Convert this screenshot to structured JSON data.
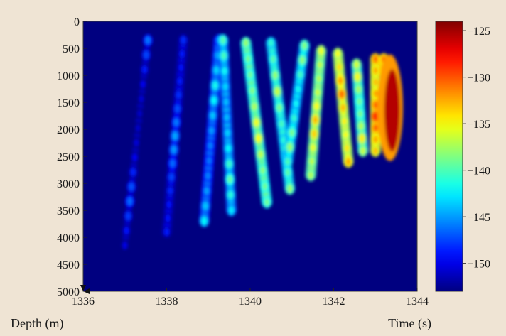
{
  "chart_data": {
    "type": "heatmap",
    "title": "",
    "xlabel": "Time (s)",
    "ylabel": "Depth (m)",
    "xlim": [
      1336,
      1344
    ],
    "ylim": [
      0,
      5000
    ],
    "y_inverted": true,
    "x_ticks": [
      1336,
      1338,
      1340,
      1342,
      1344
    ],
    "y_ticks": [
      0,
      500,
      1000,
      1500,
      2000,
      2500,
      3000,
      3500,
      4000,
      4500,
      5000
    ],
    "colorbar": {
      "range": [
        -153,
        -124
      ],
      "ticks": [
        -125,
        -130,
        -135,
        -140,
        -145,
        -150
      ],
      "tick_labels": [
        "−125",
        "−130",
        "−135",
        "−140",
        "−145",
        "−150"
      ],
      "colormap": "jet"
    },
    "background_value": -153,
    "arrivals": [
      {
        "t_top": 1337.55,
        "t_bottom": 1337.0,
        "z_top": 350,
        "z_bottom": 4150,
        "peak": -146,
        "rows": 14
      },
      {
        "t_top": 1338.4,
        "t_bottom": 1338.0,
        "z_top": 350,
        "z_bottom": 3900,
        "peak": -144,
        "rows": 14
      },
      {
        "t_top": 1339.25,
        "t_bottom": 1338.9,
        "z_top": 350,
        "z_bottom": 3700,
        "peak": -141,
        "rows": 12
      },
      {
        "t_top": 1339.35,
        "t_bottom": 1339.55,
        "z_top": 350,
        "z_bottom": 3500,
        "peak": -139,
        "rows": 11
      },
      {
        "t_top": 1339.9,
        "t_bottom": 1340.4,
        "z_top": 400,
        "z_bottom": 3350,
        "peak": -134,
        "rows": 10
      },
      {
        "t_top": 1340.5,
        "t_bottom": 1340.95,
        "z_top": 400,
        "z_bottom": 3100,
        "peak": -136,
        "rows": 9
      },
      {
        "t_top": 1341.3,
        "t_bottom": 1340.9,
        "z_top": 450,
        "z_bottom": 2600,
        "peak": -137,
        "rows": 8
      },
      {
        "t_top": 1341.7,
        "t_bottom": 1341.45,
        "z_top": 550,
        "z_bottom": 2850,
        "peak": -132,
        "rows": 9
      },
      {
        "t_top": 1342.1,
        "t_bottom": 1342.35,
        "z_top": 600,
        "z_bottom": 2600,
        "peak": -130,
        "rows": 8
      },
      {
        "t_top": 1342.55,
        "t_bottom": 1342.7,
        "z_top": 800,
        "z_bottom": 2400,
        "peak": -134,
        "rows": 7
      },
      {
        "t_top": 1343.0,
        "t_bottom": 1343.0,
        "z_top": 700,
        "z_bottom": 2400,
        "peak": -128,
        "rows": 8
      },
      {
        "t_top": 1343.2,
        "t_bottom": 1343.3,
        "z_top": 700,
        "z_bottom": 2200,
        "peak": -126,
        "rows": 8
      },
      {
        "t_top": 1343.4,
        "t_bottom": 1343.45,
        "z_top": 900,
        "z_bottom": 2000,
        "peak": -125,
        "rows": 6
      }
    ]
  }
}
